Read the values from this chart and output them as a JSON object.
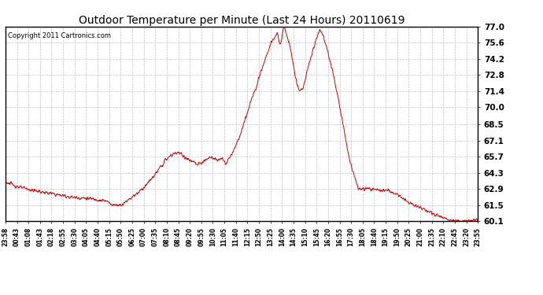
{
  "title": "Outdoor Temperature per Minute (Last 24 Hours) 20110619",
  "copyright": "Copyright 2011 Cartronics.com",
  "line_color": "#cc0000",
  "background_color": "#ffffff",
  "grid_color": "#bbbbbb",
  "ylim": [
    60.1,
    77.0
  ],
  "yticks": [
    60.1,
    61.5,
    62.9,
    64.3,
    65.7,
    67.1,
    68.5,
    70.0,
    71.4,
    72.8,
    74.2,
    75.6,
    77.0
  ],
  "xtick_labels": [
    "23:58",
    "00:43",
    "01:08",
    "01:43",
    "02:18",
    "02:55",
    "03:30",
    "04:05",
    "04:40",
    "05:15",
    "05:50",
    "06:25",
    "07:00",
    "07:35",
    "08:10",
    "08:45",
    "09:20",
    "09:55",
    "10:30",
    "11:05",
    "11:40",
    "12:15",
    "12:50",
    "13:25",
    "14:00",
    "14:35",
    "15:10",
    "15:45",
    "16:20",
    "16:55",
    "17:30",
    "18:05",
    "18:40",
    "19:15",
    "19:50",
    "20:25",
    "21:00",
    "21:35",
    "22:10",
    "22:45",
    "23:20",
    "23:55"
  ],
  "control_points": [
    [
      0,
      63.5
    ],
    [
      20,
      63.3
    ],
    [
      50,
      63.0
    ],
    [
      80,
      62.8
    ],
    [
      120,
      62.6
    ],
    [
      160,
      62.4
    ],
    [
      200,
      62.2
    ],
    [
      240,
      62.1
    ],
    [
      280,
      62.0
    ],
    [
      310,
      61.8
    ],
    [
      330,
      61.5
    ],
    [
      355,
      61.55
    ],
    [
      375,
      62.0
    ],
    [
      400,
      62.5
    ],
    [
      420,
      63.0
    ],
    [
      440,
      63.6
    ],
    [
      460,
      64.3
    ],
    [
      475,
      64.9
    ],
    [
      490,
      65.5
    ],
    [
      505,
      65.8
    ],
    [
      515,
      66.0
    ],
    [
      525,
      66.1
    ],
    [
      535,
      65.9
    ],
    [
      545,
      65.7
    ],
    [
      555,
      65.5
    ],
    [
      565,
      65.3
    ],
    [
      575,
      65.2
    ],
    [
      585,
      65.0
    ],
    [
      595,
      65.1
    ],
    [
      605,
      65.3
    ],
    [
      615,
      65.5
    ],
    [
      625,
      65.7
    ],
    [
      635,
      65.6
    ],
    [
      645,
      65.4
    ],
    [
      655,
      65.5
    ],
    [
      660,
      65.7
    ],
    [
      665,
      65.3
    ],
    [
      670,
      65.0
    ],
    [
      675,
      65.2
    ],
    [
      680,
      65.5
    ],
    [
      685,
      65.7
    ],
    [
      690,
      66.0
    ],
    [
      700,
      66.5
    ],
    [
      710,
      67.2
    ],
    [
      720,
      68.0
    ],
    [
      730,
      68.9
    ],
    [
      740,
      69.8
    ],
    [
      750,
      70.7
    ],
    [
      760,
      71.5
    ],
    [
      770,
      72.4
    ],
    [
      780,
      73.3
    ],
    [
      790,
      74.1
    ],
    [
      800,
      74.9
    ],
    [
      810,
      75.6
    ],
    [
      820,
      76.1
    ],
    [
      828,
      76.5
    ],
    [
      833,
      75.8
    ],
    [
      836,
      75.3
    ],
    [
      840,
      75.7
    ],
    [
      843,
      76.2
    ],
    [
      847,
      77.0
    ],
    [
      852,
      76.8
    ],
    [
      858,
      76.2
    ],
    [
      865,
      75.5
    ],
    [
      872,
      74.5
    ],
    [
      878,
      73.5
    ],
    [
      883,
      72.8
    ],
    [
      888,
      72.0
    ],
    [
      893,
      71.5
    ],
    [
      898,
      71.4
    ],
    [
      905,
      71.6
    ],
    [
      912,
      72.3
    ],
    [
      920,
      73.2
    ],
    [
      928,
      74.1
    ],
    [
      936,
      74.9
    ],
    [
      942,
      75.5
    ],
    [
      948,
      76.0
    ],
    [
      954,
      76.5
    ],
    [
      958,
      76.8
    ],
    [
      962,
      76.6
    ],
    [
      968,
      76.2
    ],
    [
      975,
      75.5
    ],
    [
      985,
      74.5
    ],
    [
      998,
      73.0
    ],
    [
      1012,
      71.0
    ],
    [
      1025,
      69.0
    ],
    [
      1038,
      67.0
    ],
    [
      1050,
      65.2
    ],
    [
      1060,
      64.3
    ],
    [
      1068,
      63.5
    ],
    [
      1074,
      63.0
    ],
    [
      1080,
      62.9
    ],
    [
      1090,
      62.9
    ],
    [
      1100,
      62.9
    ],
    [
      1108,
      62.95
    ],
    [
      1115,
      62.85
    ],
    [
      1122,
      62.9
    ],
    [
      1130,
      62.85
    ],
    [
      1140,
      62.8
    ],
    [
      1150,
      62.7
    ],
    [
      1160,
      62.8
    ],
    [
      1170,
      62.75
    ],
    [
      1180,
      62.6
    ],
    [
      1195,
      62.4
    ],
    [
      1210,
      62.1
    ],
    [
      1225,
      61.8
    ],
    [
      1245,
      61.5
    ],
    [
      1270,
      61.2
    ],
    [
      1300,
      60.8
    ],
    [
      1330,
      60.4
    ],
    [
      1360,
      60.2
    ],
    [
      1395,
      60.1
    ],
    [
      1420,
      60.15
    ],
    [
      1439,
      60.2
    ]
  ]
}
